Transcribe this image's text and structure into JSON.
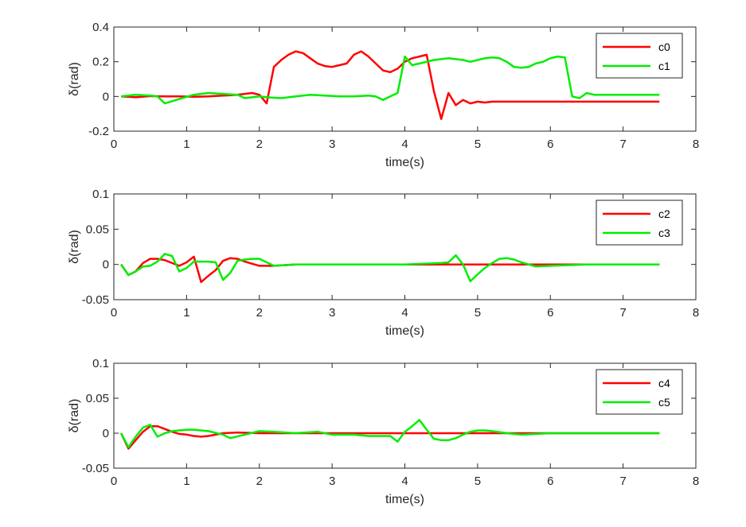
{
  "chart_data": [
    {
      "type": "line",
      "xlabel": "time(s)",
      "ylabel": "δ(rad)",
      "xlim": [
        0,
        8
      ],
      "ylim": [
        -0.2,
        0.4
      ],
      "xticks": [
        0,
        1,
        2,
        3,
        4,
        5,
        6,
        7,
        8
      ],
      "yticks": [
        -0.2,
        0,
        0.2,
        0.4
      ],
      "yticklabels": [
        "-0.2",
        "0",
        "0.2",
        "0.4"
      ],
      "legend": "top-right",
      "grid": false,
      "series": [
        {
          "name": "c0",
          "color": "#ff0000",
          "x": [
            0.1,
            0.3,
            0.5,
            0.7,
            0.9,
            1.1,
            1.3,
            1.5,
            1.7,
            1.9,
            2.0,
            2.1,
            2.2,
            2.3,
            2.4,
            2.5,
            2.6,
            2.7,
            2.8,
            2.9,
            3.0,
            3.1,
            3.2,
            3.3,
            3.4,
            3.5,
            3.6,
            3.7,
            3.8,
            3.9,
            4.0,
            4.1,
            4.2,
            4.3,
            4.4,
            4.5,
            4.6,
            4.7,
            4.8,
            4.9,
            5.0,
            5.1,
            5.2,
            5.4,
            5.6,
            6.0,
            6.5,
            7.0,
            7.5
          ],
          "y": [
            0,
            -0.005,
            0.002,
            0,
            0,
            -0.002,
            0,
            0.005,
            0.01,
            0.02,
            0.01,
            -0.04,
            0.17,
            0.21,
            0.24,
            0.26,
            0.25,
            0.22,
            0.19,
            0.175,
            0.17,
            0.18,
            0.19,
            0.24,
            0.26,
            0.23,
            0.19,
            0.15,
            0.14,
            0.16,
            0.2,
            0.22,
            0.23,
            0.24,
            0.03,
            -0.13,
            0.02,
            -0.05,
            -0.02,
            -0.04,
            -0.03,
            -0.035,
            -0.03,
            -0.03,
            -0.03,
            -0.03,
            -0.03,
            -0.03,
            -0.03
          ]
        },
        {
          "name": "c1",
          "color": "#00ee00",
          "x": [
            0.1,
            0.3,
            0.5,
            0.6,
            0.7,
            0.9,
            1.1,
            1.3,
            1.5,
            1.7,
            1.8,
            1.9,
            2.0,
            2.1,
            2.3,
            2.5,
            2.7,
            2.9,
            3.1,
            3.3,
            3.5,
            3.6,
            3.7,
            3.8,
            3.9,
            4.0,
            4.1,
            4.2,
            4.4,
            4.6,
            4.8,
            4.9,
            5.0,
            5.1,
            5.2,
            5.3,
            5.4,
            5.5,
            5.6,
            5.7,
            5.8,
            5.9,
            6.0,
            6.1,
            6.2,
            6.3,
            6.4,
            6.5,
            6.6,
            6.7,
            6.8,
            7.0,
            7.5
          ],
          "y": [
            0,
            0.01,
            0.005,
            0,
            -0.04,
            -0.015,
            0.01,
            0.02,
            0.015,
            0.01,
            -0.01,
            -0.005,
            0,
            -0.005,
            -0.01,
            0,
            0.01,
            0.005,
            0,
            0,
            0.005,
            0,
            -0.02,
            0,
            0.02,
            0.23,
            0.18,
            0.19,
            0.21,
            0.22,
            0.21,
            0.2,
            0.21,
            0.22,
            0.225,
            0.22,
            0.2,
            0.17,
            0.165,
            0.17,
            0.19,
            0.2,
            0.22,
            0.23,
            0.225,
            0.0,
            -0.01,
            0.02,
            0.01,
            0.01,
            0.01,
            0.01,
            0.01
          ]
        }
      ]
    },
    {
      "type": "line",
      "xlabel": "time(s)",
      "ylabel": "δ(rad)",
      "xlim": [
        0,
        8
      ],
      "ylim": [
        -0.05,
        0.1
      ],
      "xticks": [
        0,
        1,
        2,
        3,
        4,
        5,
        6,
        7,
        8
      ],
      "yticks": [
        -0.05,
        0,
        0.05,
        0.1
      ],
      "yticklabels": [
        "-0.05",
        "0",
        "0.05",
        "0.1"
      ],
      "legend": "top-right",
      "grid": false,
      "series": [
        {
          "name": "c2",
          "color": "#ff0000",
          "x": [
            0.1,
            0.2,
            0.3,
            0.4,
            0.5,
            0.6,
            0.7,
            0.8,
            0.9,
            1.0,
            1.1,
            1.2,
            1.3,
            1.4,
            1.5,
            1.6,
            1.7,
            1.8,
            1.9,
            2.0,
            2.2,
            2.5,
            3.0,
            4.0,
            5.0,
            6.0,
            7.0,
            7.5
          ],
          "y": [
            0,
            -0.015,
            -0.01,
            0.002,
            0.008,
            0.008,
            0.006,
            0.002,
            -0.002,
            0.003,
            0.011,
            -0.025,
            -0.016,
            -0.008,
            0.005,
            0.009,
            0.008,
            0.004,
            0.001,
            -0.002,
            -0.002,
            0,
            0,
            0,
            0,
            0,
            0,
            0
          ]
        },
        {
          "name": "c3",
          "color": "#00ee00",
          "x": [
            0.1,
            0.2,
            0.3,
            0.4,
            0.5,
            0.6,
            0.7,
            0.8,
            0.9,
            1.0,
            1.1,
            1.2,
            1.3,
            1.4,
            1.5,
            1.6,
            1.7,
            1.8,
            1.9,
            2.0,
            2.2,
            2.5,
            3.0,
            3.5,
            4.0,
            4.5,
            4.6,
            4.7,
            4.8,
            4.9,
            5.0,
            5.1,
            5.2,
            5.3,
            5.4,
            5.5,
            5.6,
            5.8,
            6.0,
            6.5,
            7.0,
            7.5
          ],
          "y": [
            0,
            -0.015,
            -0.01,
            -0.003,
            -0.002,
            0.004,
            0.015,
            0.012,
            -0.01,
            -0.005,
            0.004,
            0.004,
            0.004,
            0.003,
            -0.022,
            -0.012,
            0.005,
            0.007,
            0.008,
            0.008,
            -0.002,
            0,
            0,
            0,
            0,
            0.002,
            0.003,
            0.013,
            0,
            -0.024,
            -0.014,
            -0.005,
            0.002,
            0.008,
            0.009,
            0.007,
            0.003,
            -0.003,
            -0.002,
            0,
            0,
            0
          ]
        }
      ]
    },
    {
      "type": "line",
      "xlabel": "time(s)",
      "ylabel": "δ(rad)",
      "xlim": [
        0,
        8
      ],
      "ylim": [
        -0.05,
        0.1
      ],
      "xticks": [
        0,
        1,
        2,
        3,
        4,
        5,
        6,
        7,
        8
      ],
      "yticks": [
        -0.05,
        0,
        0.05,
        0.1
      ],
      "yticklabels": [
        "-0.05",
        "0",
        "0.05",
        "0.1"
      ],
      "legend": "top-right",
      "grid": false,
      "series": [
        {
          "name": "c4",
          "color": "#ff0000",
          "x": [
            0.1,
            0.2,
            0.3,
            0.4,
            0.5,
            0.6,
            0.7,
            0.8,
            0.9,
            1.0,
            1.1,
            1.2,
            1.3,
            1.5,
            1.7,
            2.0,
            3.0,
            4.0,
            5.0,
            6.0,
            7.0,
            7.5
          ],
          "y": [
            0,
            -0.022,
            -0.01,
            0.002,
            0.01,
            0.01,
            0.006,
            0.002,
            -0.001,
            -0.002,
            -0.004,
            -0.005,
            -0.004,
            0,
            0.001,
            0,
            0,
            0,
            0,
            0,
            0,
            0
          ]
        },
        {
          "name": "c5",
          "color": "#00ee00",
          "x": [
            0.1,
            0.2,
            0.3,
            0.4,
            0.5,
            0.6,
            0.7,
            0.8,
            0.9,
            1.0,
            1.1,
            1.3,
            1.5,
            1.6,
            1.8,
            2.0,
            2.2,
            2.5,
            2.8,
            3.0,
            3.3,
            3.5,
            3.8,
            3.9,
            4.0,
            4.1,
            4.2,
            4.3,
            4.4,
            4.5,
            4.6,
            4.7,
            4.8,
            4.9,
            5.0,
            5.1,
            5.2,
            5.4,
            5.6,
            6.0,
            6.5,
            7.0,
            7.5
          ],
          "y": [
            0,
            -0.02,
            -0.005,
            0.008,
            0.012,
            -0.005,
            0,
            0.003,
            0.004,
            0.005,
            0.005,
            0.003,
            -0.002,
            -0.007,
            -0.002,
            0.003,
            0.002,
            0,
            0.002,
            -0.002,
            -0.002,
            -0.004,
            -0.004,
            -0.012,
            0.002,
            0.01,
            0.019,
            0.005,
            -0.008,
            -0.01,
            -0.01,
            -0.007,
            -0.002,
            0.002,
            0.004,
            0.004,
            0.003,
            0,
            -0.002,
            0,
            0,
            0,
            0
          ]
        }
      ]
    }
  ]
}
